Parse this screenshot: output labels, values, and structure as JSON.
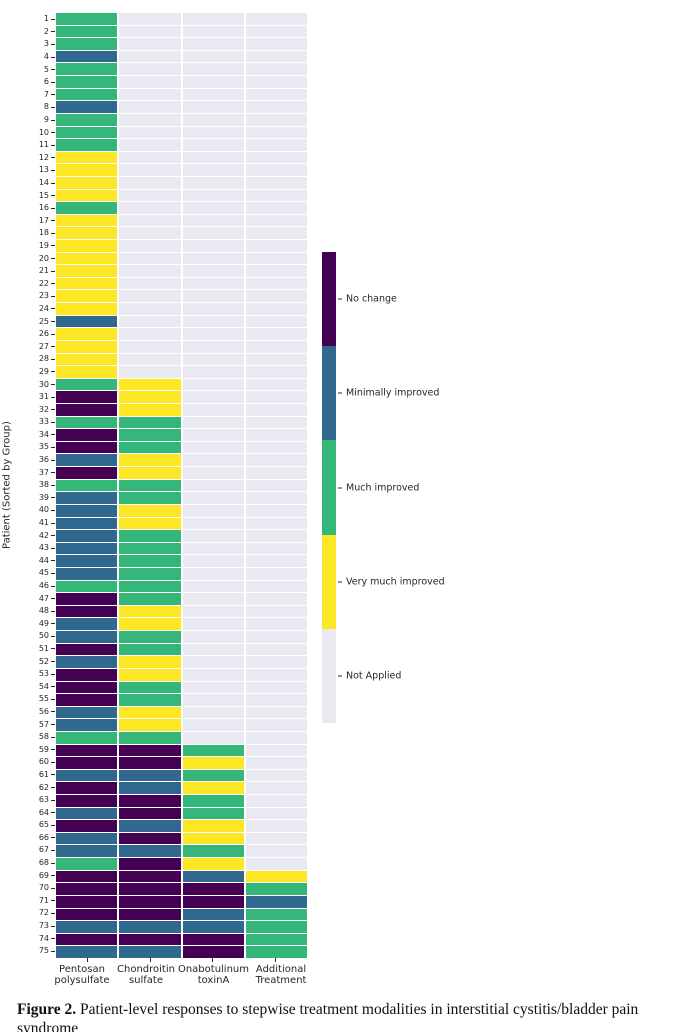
{
  "figure": {
    "y_axis_label": "Patient (Sorted by Group)",
    "x_categories": [
      {
        "line1": "Pentosan",
        "line2": "polysulfate"
      },
      {
        "line1": "Chondroitin",
        "line2": "sulfate"
      },
      {
        "line1": "Onabotulinum",
        "line2": "toxinA"
      },
      {
        "line1": "Additional",
        "line2": "Treatment"
      }
    ]
  },
  "legend": {
    "entries": [
      {
        "label": "No change",
        "color": "#440154"
      },
      {
        "label": "Minimally improved",
        "color": "#31688e"
      },
      {
        "label": "Much improved",
        "color": "#35b779"
      },
      {
        "label": "Very much improved",
        "color": "#fde725"
      },
      {
        "label": "Not Applied",
        "color": "#e9e9f1"
      }
    ]
  },
  "chart_data": {
    "type": "heatmap",
    "title": "",
    "xlabel": "",
    "ylabel": "Patient (Sorted by Group)",
    "columns": [
      "Pentosan polysulfate",
      "Chondroitin sulfate",
      "Onabotulinum toxinA",
      "Additional Treatment"
    ],
    "value_labels": {
      "0": "No change",
      "1": "Minimally improved",
      "2": "Much improved",
      "3": "Very much improved",
      "4": "Not Applied"
    },
    "value_colors": {
      "0": "#440154",
      "1": "#31688e",
      "2": "#35b779",
      "3": "#fde725",
      "4": "#e9e9f1"
    },
    "rows": [
      {
        "patient": 1,
        "codes": "2444"
      },
      {
        "patient": 2,
        "codes": "2444"
      },
      {
        "patient": 3,
        "codes": "2444"
      },
      {
        "patient": 4,
        "codes": "1444"
      },
      {
        "patient": 5,
        "codes": "2444"
      },
      {
        "patient": 6,
        "codes": "2444"
      },
      {
        "patient": 7,
        "codes": "2444"
      },
      {
        "patient": 8,
        "codes": "1444"
      },
      {
        "patient": 9,
        "codes": "2444"
      },
      {
        "patient": 10,
        "codes": "2444"
      },
      {
        "patient": 11,
        "codes": "2444"
      },
      {
        "patient": 12,
        "codes": "3444"
      },
      {
        "patient": 13,
        "codes": "3444"
      },
      {
        "patient": 14,
        "codes": "3444"
      },
      {
        "patient": 15,
        "codes": "3444"
      },
      {
        "patient": 16,
        "codes": "2444"
      },
      {
        "patient": 17,
        "codes": "3444"
      },
      {
        "patient": 18,
        "codes": "3444"
      },
      {
        "patient": 19,
        "codes": "3444"
      },
      {
        "patient": 20,
        "codes": "3444"
      },
      {
        "patient": 21,
        "codes": "3444"
      },
      {
        "patient": 22,
        "codes": "3444"
      },
      {
        "patient": 23,
        "codes": "3444"
      },
      {
        "patient": 24,
        "codes": "3444"
      },
      {
        "patient": 25,
        "codes": "1444"
      },
      {
        "patient": 26,
        "codes": "3444"
      },
      {
        "patient": 27,
        "codes": "3444"
      },
      {
        "patient": 28,
        "codes": "3444"
      },
      {
        "patient": 29,
        "codes": "3444"
      },
      {
        "patient": 30,
        "codes": "2344"
      },
      {
        "patient": 31,
        "codes": "0344"
      },
      {
        "patient": 32,
        "codes": "0344"
      },
      {
        "patient": 33,
        "codes": "2244"
      },
      {
        "patient": 34,
        "codes": "0244"
      },
      {
        "patient": 35,
        "codes": "0244"
      },
      {
        "patient": 36,
        "codes": "1344"
      },
      {
        "patient": 37,
        "codes": "0344"
      },
      {
        "patient": 38,
        "codes": "2244"
      },
      {
        "patient": 39,
        "codes": "1244"
      },
      {
        "patient": 40,
        "codes": "1344"
      },
      {
        "patient": 41,
        "codes": "1344"
      },
      {
        "patient": 42,
        "codes": "1244"
      },
      {
        "patient": 43,
        "codes": "1244"
      },
      {
        "patient": 44,
        "codes": "1244"
      },
      {
        "patient": 45,
        "codes": "1244"
      },
      {
        "patient": 46,
        "codes": "2244"
      },
      {
        "patient": 47,
        "codes": "0244"
      },
      {
        "patient": 48,
        "codes": "0344"
      },
      {
        "patient": 49,
        "codes": "1344"
      },
      {
        "patient": 50,
        "codes": "1244"
      },
      {
        "patient": 51,
        "codes": "0244"
      },
      {
        "patient": 52,
        "codes": "1344"
      },
      {
        "patient": 53,
        "codes": "0344"
      },
      {
        "patient": 54,
        "codes": "0244"
      },
      {
        "patient": 55,
        "codes": "0244"
      },
      {
        "patient": 56,
        "codes": "1344"
      },
      {
        "patient": 57,
        "codes": "1344"
      },
      {
        "patient": 58,
        "codes": "2244"
      },
      {
        "patient": 59,
        "codes": "0024"
      },
      {
        "patient": 60,
        "codes": "0034"
      },
      {
        "patient": 61,
        "codes": "1124"
      },
      {
        "patient": 62,
        "codes": "0134"
      },
      {
        "patient": 63,
        "codes": "0024"
      },
      {
        "patient": 64,
        "codes": "1024"
      },
      {
        "patient": 65,
        "codes": "0134"
      },
      {
        "patient": 66,
        "codes": "1034"
      },
      {
        "patient": 67,
        "codes": "1124"
      },
      {
        "patient": 68,
        "codes": "2034"
      },
      {
        "patient": 69,
        "codes": "0013"
      },
      {
        "patient": 70,
        "codes": "0002"
      },
      {
        "patient": 71,
        "codes": "0001"
      },
      {
        "patient": 72,
        "codes": "0012"
      },
      {
        "patient": 73,
        "codes": "1112"
      },
      {
        "patient": 74,
        "codes": "0002"
      },
      {
        "patient": 75,
        "codes": "1102"
      }
    ]
  },
  "caption": {
    "prefix": "Figure 2.",
    "text": " Patient-level responses to stepwise treatment modalities in interstitial cystitis/bladder pain syndrome"
  }
}
